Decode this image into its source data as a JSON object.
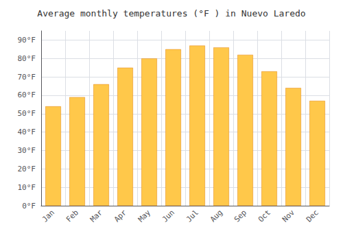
{
  "chart_data": {
    "type": "bar",
    "title": "Average monthly temperatures (°F ) in Nuevo Laredo",
    "categories": [
      "Jan",
      "Feb",
      "Mar",
      "Apr",
      "May",
      "Jun",
      "Jul",
      "Aug",
      "Sep",
      "Oct",
      "Nov",
      "Dec"
    ],
    "values": [
      54,
      59,
      66,
      75,
      80,
      85,
      87,
      86,
      82,
      73,
      64,
      57
    ],
    "color": "#FFC84A",
    "ylim": [
      0,
      95
    ],
    "yticks": [
      {
        "value": 0,
        "label": "0°F"
      },
      {
        "value": 10,
        "label": "10°F"
      },
      {
        "value": 20,
        "label": "20°F"
      },
      {
        "value": 30,
        "label": "30°F"
      },
      {
        "value": 40,
        "label": "40°F"
      },
      {
        "value": 50,
        "label": "50°F"
      },
      {
        "value": 60,
        "label": "60°F"
      },
      {
        "value": 70,
        "label": "70°F"
      },
      {
        "value": 80,
        "label": "80°F"
      },
      {
        "value": 90,
        "label": "90°F"
      }
    ],
    "grid": true
  }
}
